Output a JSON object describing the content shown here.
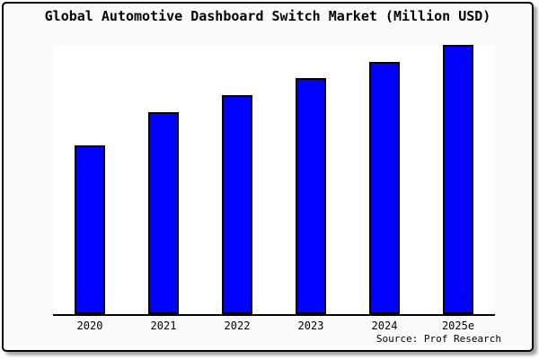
{
  "window": {
    "background_color": "#fafafa",
    "plot_background_color": "#ffffff",
    "frame_border_color": "#000000"
  },
  "chart_data": {
    "type": "bar",
    "title": "Global Automotive Dashboard Switch Market (Million USD)",
    "categories": [
      "2020",
      "2021",
      "2022",
      "2023",
      "2024",
      "2025e"
    ],
    "values": [
      62.8,
      75.1,
      81.4,
      87.7,
      93.7,
      100
    ],
    "values_note": "Chart displays no numeric y-axis or data labels; values are bar heights expressed as percent of the tallest (2025e) bar",
    "ylim": [
      0,
      100
    ],
    "xlabel": "",
    "ylabel": "",
    "grid": false,
    "y_axis_visible": false,
    "legend_position": "none",
    "bar_color": "#0000ff",
    "bar_border_color": "#000000",
    "source": "Source: Prof Research"
  }
}
